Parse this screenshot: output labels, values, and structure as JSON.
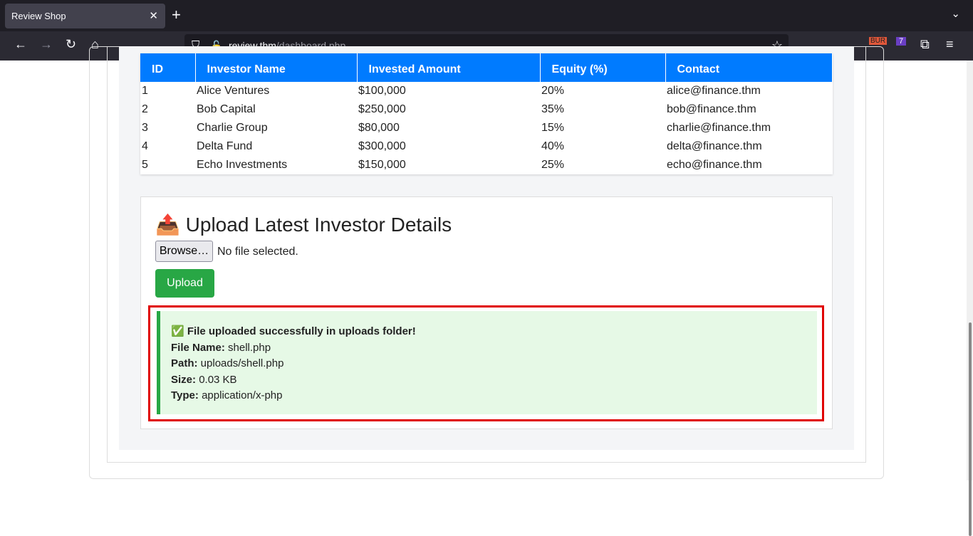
{
  "browser": {
    "tab_title": "Review Shop",
    "url_host": "review.thm",
    "url_path": "/dashboard.php",
    "ext_badge": "7",
    "ext_burp": "BUR"
  },
  "table": {
    "headers": [
      "ID",
      "Investor Name",
      "Invested Amount",
      "Equity (%)",
      "Contact"
    ],
    "rows": [
      [
        "1",
        "Alice Ventures",
        "$100,000",
        "20%",
        "alice@finance.thm"
      ],
      [
        "2",
        "Bob Capital",
        "$250,000",
        "35%",
        "bob@finance.thm"
      ],
      [
        "3",
        "Charlie Group",
        "$80,000",
        "15%",
        "charlie@finance.thm"
      ],
      [
        "4",
        "Delta Fund",
        "$300,000",
        "40%",
        "delta@finance.thm"
      ],
      [
        "5",
        "Echo Investments",
        "$150,000",
        "25%",
        "echo@finance.thm"
      ]
    ]
  },
  "upload": {
    "title": "Upload Latest Investor Details",
    "browse_label": "Browse…",
    "file_status": "No file selected.",
    "upload_label": "Upload"
  },
  "result": {
    "message": "File uploaded successfully in uploads folder!",
    "fields": [
      {
        "label": "File Name:",
        "value": "shell.php"
      },
      {
        "label": "Path:",
        "value": "uploads/shell.php"
      },
      {
        "label": "Size:",
        "value": "0.03 KB"
      },
      {
        "label": "Type:",
        "value": "application/x-php"
      }
    ]
  }
}
